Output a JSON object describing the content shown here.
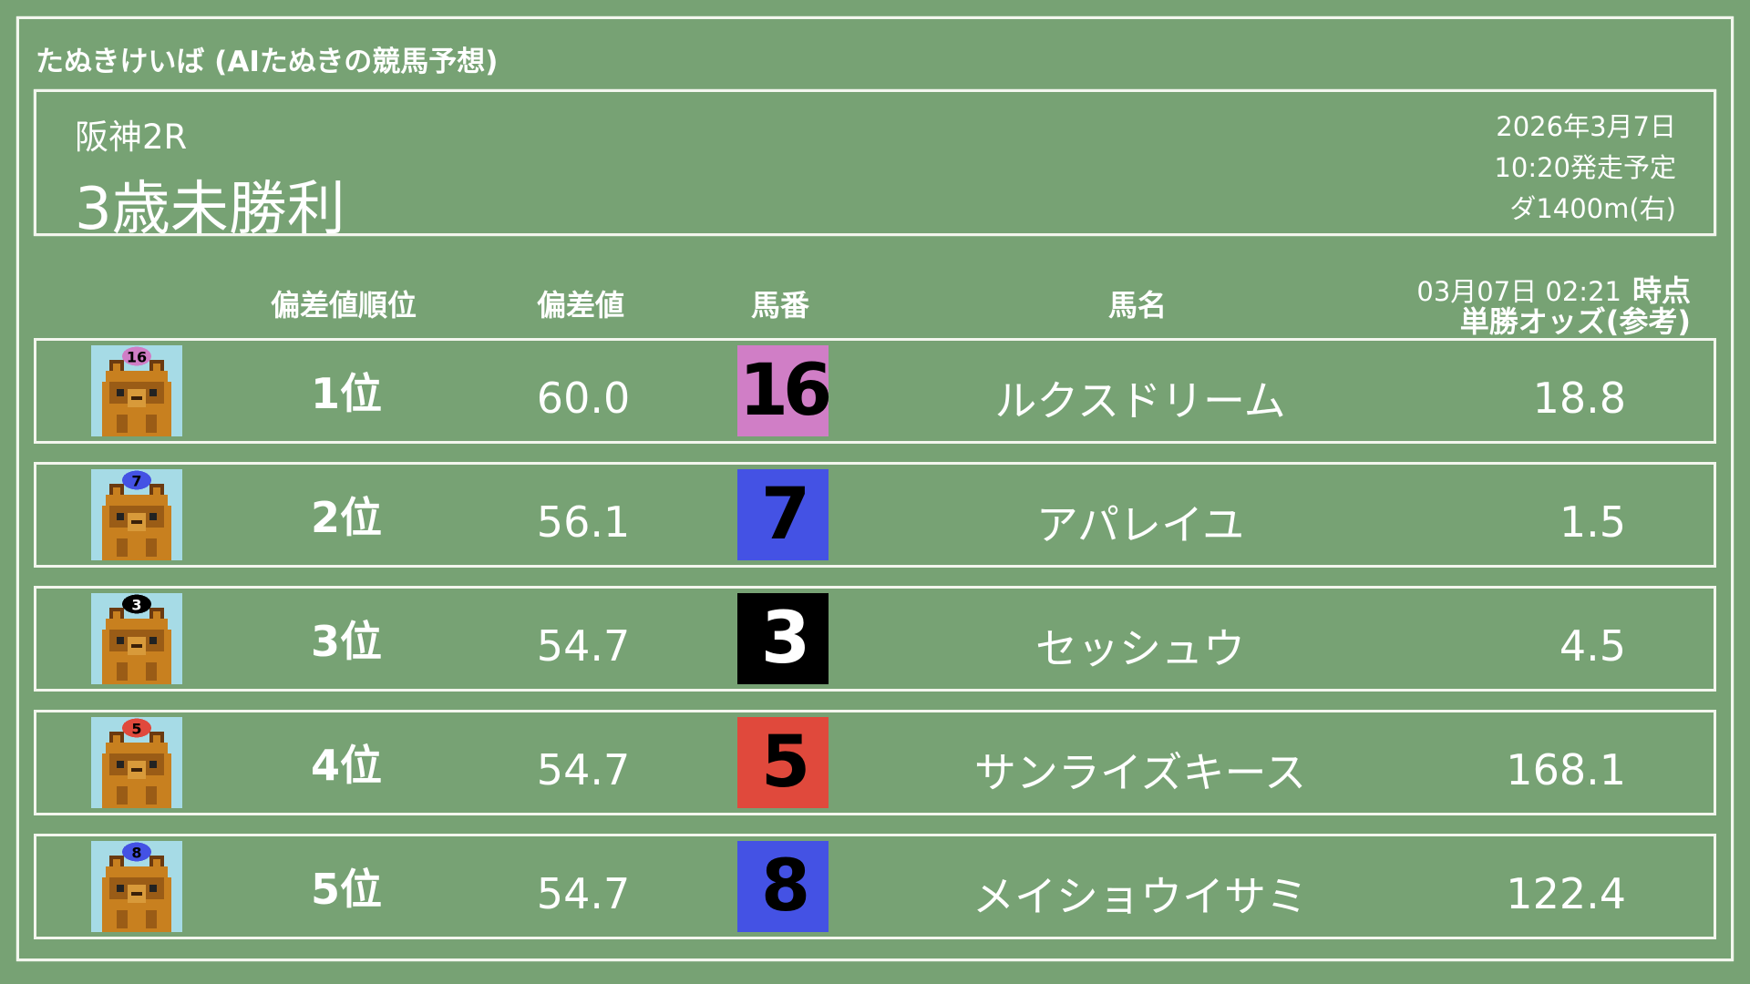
{
  "site_title": "たぬきけいば (AIたぬきの競馬予想)",
  "race": {
    "venue_round": "阪神2R",
    "name": "3歳未勝利",
    "date": "2026年3月7日",
    "start_time": "10:20発走予定",
    "course": "ダ1400m(右)"
  },
  "columns": {
    "rank": "偏差値順位",
    "score": "偏差値",
    "number": "馬番",
    "horse": "馬名",
    "odds_time": "03月07日 02:21",
    "odds_time_suffix": "時点",
    "odds": "単勝オッズ(参考)"
  },
  "colors": {
    "background": "#77a274",
    "icon_bg": "#a6dbe6",
    "tanuki": "#c8801f"
  },
  "rows": [
    {
      "rank": "1位",
      "score": "60.0",
      "number": "16",
      "horse": "ルクスドリーム",
      "odds": "18.8",
      "box_color": "#d07ec6",
      "num_color": "#000000",
      "icon": "tanuki-icon"
    },
    {
      "rank": "2位",
      "score": "56.1",
      "number": "7",
      "horse": "アパレイユ",
      "odds": "1.5",
      "box_color": "#4452e4",
      "num_color": "#000000",
      "icon": "tanuki-icon"
    },
    {
      "rank": "3位",
      "score": "54.7",
      "number": "3",
      "horse": "セッシュウ",
      "odds": "4.5",
      "box_color": "#000000",
      "num_color": "#ffffff",
      "icon": "tanuki-icon"
    },
    {
      "rank": "4位",
      "score": "54.7",
      "number": "5",
      "horse": "サンライズキース",
      "odds": "168.1",
      "box_color": "#e0493c",
      "num_color": "#000000",
      "icon": "tanuki-icon"
    },
    {
      "rank": "5位",
      "score": "54.7",
      "number": "8",
      "horse": "メイショウイサミ",
      "odds": "122.4",
      "box_color": "#4452e4",
      "num_color": "#000000",
      "icon": "tanuki-icon"
    }
  ]
}
